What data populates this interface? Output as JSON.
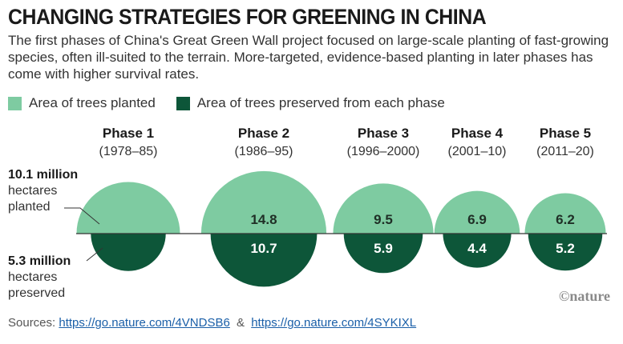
{
  "title": "CHANGING STRATEGIES FOR GREENING IN CHINA",
  "subtitle": "The first phases of China's Great Green Wall project focused on large-scale planting of fast-growing species, often ill-suited to the terrain. More-targeted, evidence-based planting in later phases has come with higher survival rates.",
  "legend": {
    "planted": "Area of trees planted",
    "preserved": "Area of trees preserved from each phase"
  },
  "colors": {
    "planted": "#7ecba1",
    "preserved": "#0d5639",
    "axis": "#333333"
  },
  "annotations": {
    "planted": {
      "value": "10.1 million",
      "line1": "hectares",
      "line2": "planted"
    },
    "preserved": {
      "value": "5.3 million",
      "line1": "hectares",
      "line2": "preserved"
    }
  },
  "chart_data": {
    "type": "semicircle-area",
    "units": "million hectares",
    "categories": [
      "Phase 1",
      "Phase 2",
      "Phase 3",
      "Phase 4",
      "Phase 5"
    ],
    "periods": [
      "(1978–85)",
      "(1986–95)",
      "(1996–2000)",
      "(2001–10)",
      "(2011–20)"
    ],
    "series": [
      {
        "name": "Area of trees planted",
        "values": [
          10.1,
          14.8,
          9.5,
          6.9,
          6.2
        ],
        "labels": [
          "",
          "14.8",
          "9.5",
          "6.9",
          "6.2"
        ]
      },
      {
        "name": "Area of trees preserved from each phase",
        "values": [
          5.3,
          10.7,
          5.9,
          4.4,
          5.2
        ],
        "labels": [
          "",
          "10.7",
          "5.9",
          "4.4",
          "5.2"
        ]
      }
    ]
  },
  "sources": {
    "prefix": "Sources:",
    "link1": "https://go.nature.com/4VNDSB6",
    "sep": "&",
    "link2": "https://go.nature.com/4SYKIXL"
  },
  "brand": "©nature"
}
